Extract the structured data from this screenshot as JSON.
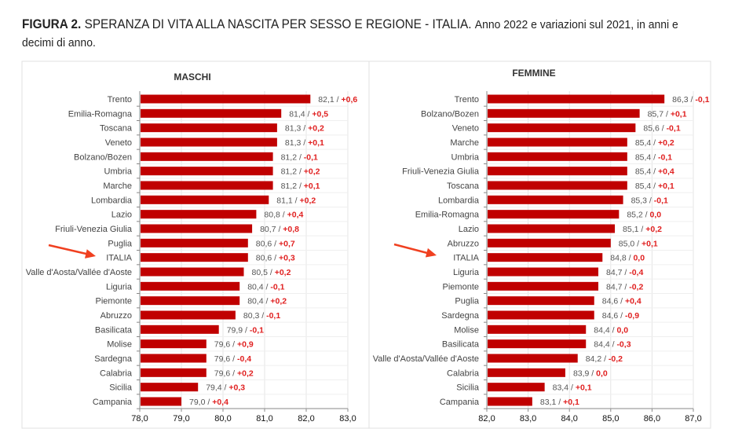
{
  "figure": {
    "label": "FIGURA 2.",
    "title": "SPERANZA DI VITA ALLA NASCITA PER SESSO E REGIONE - ITALIA.",
    "subtitle": "Anno 2022  e variazioni sul 2021, in anni e decimi di anno."
  },
  "colors": {
    "bar": "#c00000",
    "delta": "#e02020",
    "arrow": "#f04020"
  },
  "chart_data": [
    {
      "type": "bar",
      "orientation": "horizontal",
      "title": "MASCHI",
      "xlim": [
        78.0,
        83.0
      ],
      "xticks": [
        "78,0",
        "79,0",
        "80,0",
        "81,0",
        "82,0",
        "83,0"
      ],
      "grid": true,
      "highlight": "ITALIA",
      "categories": [
        "Trento",
        "Emilia-Romagna",
        "Toscana",
        "Veneto",
        "Bolzano/Bozen",
        "Umbria",
        "Marche",
        "Lombardia",
        "Lazio",
        "Friuli-Venezia Giulia",
        "Puglia",
        "ITALIA",
        "Valle d'Aosta/Vallée d'Aoste",
        "Liguria",
        "Piemonte",
        "Abruzzo",
        "Basilicata",
        "Molise",
        "Sardegna",
        "Calabria",
        "Sicilia",
        "Campania"
      ],
      "values": [
        82.1,
        81.4,
        81.3,
        81.3,
        81.2,
        81.2,
        81.2,
        81.1,
        80.8,
        80.7,
        80.6,
        80.6,
        80.5,
        80.4,
        80.4,
        80.3,
        79.9,
        79.6,
        79.6,
        79.6,
        79.4,
        79.0
      ],
      "changes": [
        0.6,
        0.5,
        0.2,
        0.1,
        -0.1,
        0.2,
        0.1,
        0.2,
        0.4,
        0.8,
        0.7,
        0.3,
        0.2,
        -0.1,
        0.2,
        -0.1,
        -0.1,
        0.9,
        -0.4,
        0.2,
        0.3,
        0.4
      ]
    },
    {
      "type": "bar",
      "orientation": "horizontal",
      "title": "FEMMINE",
      "xlim": [
        82.0,
        87.0
      ],
      "xticks": [
        "82,0",
        "83,0",
        "84,0",
        "85,0",
        "86,0",
        "87,0"
      ],
      "grid": true,
      "highlight": "ITALIA",
      "categories": [
        "Trento",
        "Bolzano/Bozen",
        "Veneto",
        "Marche",
        "Umbria",
        "Friuli-Venezia Giulia",
        "Toscana",
        "Lombardia",
        "Emilia-Romagna",
        "Lazio",
        "Abruzzo",
        "ITALIA",
        "Liguria",
        "Piemonte",
        "Puglia",
        "Sardegna",
        "Molise",
        "Basilicata",
        "Valle d'Aosta/Vallée d'Aoste",
        "Calabria",
        "Sicilia",
        "Campania"
      ],
      "values": [
        86.3,
        85.7,
        85.6,
        85.4,
        85.4,
        85.4,
        85.4,
        85.3,
        85.2,
        85.1,
        85.0,
        84.8,
        84.7,
        84.7,
        84.6,
        84.6,
        84.4,
        84.4,
        84.2,
        83.9,
        83.4,
        83.1
      ],
      "changes": [
        -0.1,
        0.1,
        -0.1,
        0.2,
        -0.1,
        0.4,
        0.1,
        -0.1,
        0.0,
        0.2,
        0.1,
        0.0,
        -0.4,
        -0.2,
        0.4,
        -0.9,
        0.0,
        -0.3,
        -0.2,
        0.0,
        0.1,
        0.1
      ]
    }
  ]
}
